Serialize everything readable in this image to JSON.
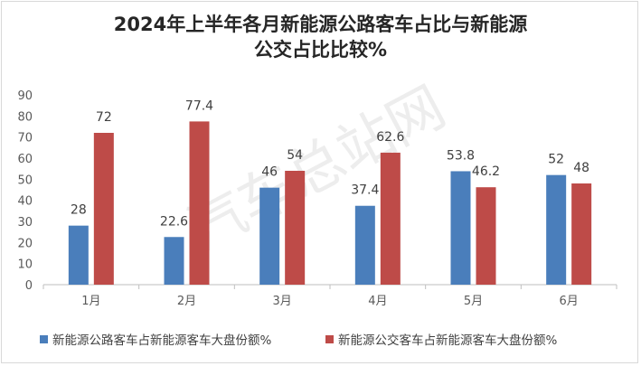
{
  "chart_data": {
    "type": "bar",
    "title": [
      "2024年上半年各月新能源公路客车占比与新能源",
      "公交占比比较%"
    ],
    "categories": [
      "1月",
      "2月",
      "3月",
      "4月",
      "5月",
      "6月"
    ],
    "series": [
      {
        "name": "新能源公路客车占新能源客车大盘份额%",
        "color": "#4a7ebb",
        "values": [
          28,
          22.6,
          46,
          37.4,
          53.8,
          52
        ]
      },
      {
        "name": "新能源公交客车占新能源客车大盘份额%",
        "color": "#be4b48",
        "values": [
          72,
          77.4,
          54,
          62.6,
          46.2,
          48
        ]
      }
    ],
    "ylim": [
      0,
      90
    ],
    "yticks": [
      0,
      10,
      20,
      30,
      40,
      50,
      60,
      70,
      80,
      90
    ],
    "grid": false,
    "legend": "bottom",
    "data_labels": true,
    "watermark": "汽车总站网"
  }
}
